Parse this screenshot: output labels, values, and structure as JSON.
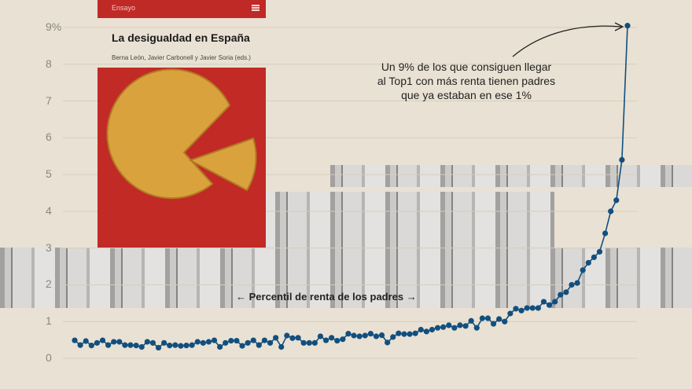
{
  "book": {
    "section": "Ensayo",
    "menu_icon": "hamburger-icon",
    "title": "La desigualdad en España",
    "authors": "Berna León, Javier Carbonell y Javier Soria (eds.)",
    "cover_color": "#c22a26",
    "cover_image": "tortilla-slice-illustration"
  },
  "chart_data": {
    "type": "line",
    "xlabel": "← Percentil de renta de los padres →",
    "ylabel": "",
    "y_ticks": [
      "0",
      "1",
      "2",
      "3",
      "4",
      "5",
      "6",
      "7",
      "8",
      "9%"
    ],
    "ylim": [
      0,
      9
    ],
    "grid": true,
    "series_color": "#124f7e",
    "x": [
      1,
      2,
      3,
      4,
      5,
      6,
      7,
      8,
      9,
      10,
      11,
      12,
      13,
      14,
      15,
      16,
      17,
      18,
      19,
      20,
      21,
      22,
      23,
      24,
      25,
      26,
      27,
      28,
      29,
      30,
      31,
      32,
      33,
      34,
      35,
      36,
      37,
      38,
      39,
      40,
      41,
      42,
      43,
      44,
      45,
      46,
      47,
      48,
      49,
      50,
      51,
      52,
      53,
      54,
      55,
      56,
      57,
      58,
      59,
      60,
      61,
      62,
      63,
      64,
      65,
      66,
      67,
      68,
      69,
      70,
      71,
      72,
      73,
      74,
      75,
      76,
      77,
      78,
      79,
      80,
      81,
      82,
      83,
      84,
      85,
      86,
      87,
      88,
      89,
      90,
      91,
      92,
      93,
      94,
      95,
      96,
      97,
      98,
      99,
      100
    ],
    "values": [
      0.49,
      0.36,
      0.47,
      0.35,
      0.42,
      0.49,
      0.36,
      0.45,
      0.45,
      0.36,
      0.36,
      0.35,
      0.31,
      0.45,
      0.42,
      0.29,
      0.42,
      0.35,
      0.36,
      0.34,
      0.35,
      0.36,
      0.45,
      0.42,
      0.45,
      0.49,
      0.31,
      0.42,
      0.48,
      0.48,
      0.34,
      0.42,
      0.49,
      0.36,
      0.49,
      0.42,
      0.56,
      0.31,
      0.62,
      0.55,
      0.56,
      0.42,
      0.42,
      0.42,
      0.6,
      0.49,
      0.56,
      0.48,
      0.52,
      0.67,
      0.62,
      0.6,
      0.62,
      0.67,
      0.6,
      0.63,
      0.43,
      0.58,
      0.68,
      0.66,
      0.66,
      0.68,
      0.78,
      0.73,
      0.78,
      0.83,
      0.85,
      0.9,
      0.83,
      0.9,
      0.88,
      1.02,
      0.83,
      1.09,
      1.09,
      0.94,
      1.07,
      1.0,
      1.22,
      1.35,
      1.3,
      1.37,
      1.37,
      1.37,
      1.54,
      1.45,
      1.54,
      1.73,
      1.8,
      2.0,
      2.05,
      2.4,
      2.6,
      2.75,
      2.9,
      3.4,
      4.0,
      4.3,
      5.4,
      9.05
    ],
    "annotation": "Un 9% de los que consiguen llegar al Top1 con más renta tienen padres que ya estaban en ese 1%"
  }
}
